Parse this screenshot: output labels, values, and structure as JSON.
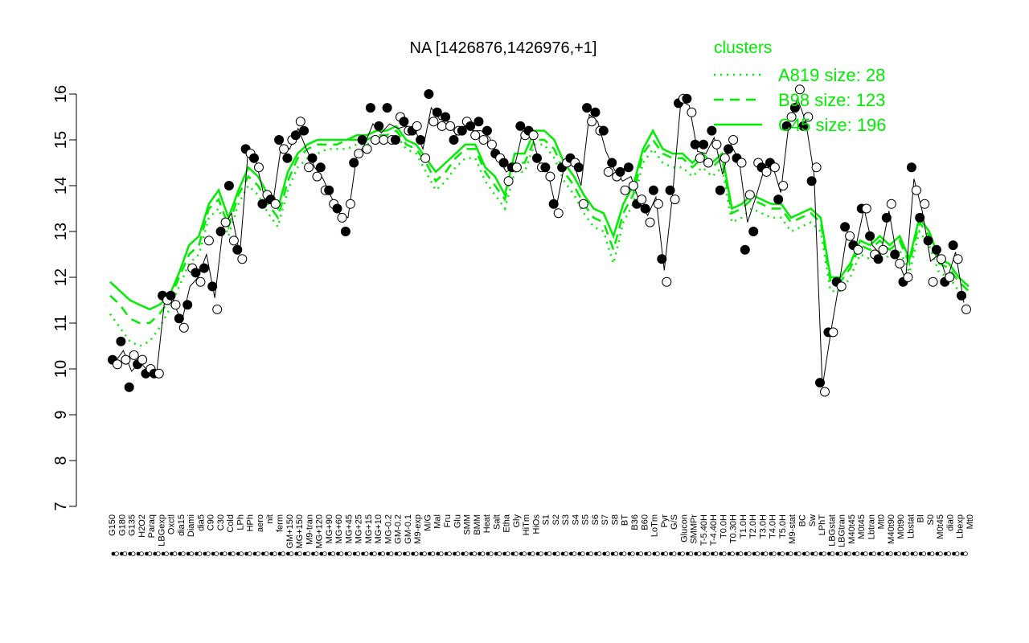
{
  "chart_data": {
    "type": "line",
    "title": "NA [1426876,1426976,+1]",
    "xlabel": "",
    "ylabel": "",
    "ylim": [
      7,
      16
    ],
    "yticks": [
      7,
      8,
      9,
      10,
      11,
      12,
      13,
      14,
      15,
      16
    ],
    "grid": false,
    "legend": {
      "title": "clusters",
      "placement": "top-right",
      "entries": [
        {
          "label": "A819 size: 28",
          "style": "dotted"
        },
        {
          "label": "B98 size: 123",
          "style": "dashed"
        },
        {
          "label": "C45 size: 196",
          "style": "solid"
        }
      ]
    },
    "colors": {
      "accent": "#00ee00",
      "points": "#000000"
    },
    "xtick_labels": [
      "G150",
      "G180",
      "G135",
      "H2O2",
      "Paraq",
      "LBGexp",
      "Oxctl",
      "dia15",
      "Diami",
      "dia5",
      "C90",
      "C30",
      "Cold",
      "LPh",
      "HPh",
      "aero",
      "nit",
      "ferm",
      "GM+150",
      "MG+150",
      "M9-tran",
      "MG+120",
      "MG+90",
      "MG+60",
      "MG+45",
      "MG+25",
      "MG+15",
      "MG+10",
      "MG-0.2",
      "GM-0.2",
      "GM-0.1",
      "M9-exp",
      "M/G",
      "Mal",
      "Fru",
      "Glu",
      "SMM",
      "BMM",
      "Heat",
      "Salt",
      "Etha",
      "Gly",
      "HiTm",
      "HiOs",
      "S1",
      "S2",
      "S3",
      "S4",
      "S5",
      "S6",
      "S7",
      "S8",
      "BT",
      "B36",
      "B60",
      "LoTm",
      "Pyr",
      "G/S",
      "Glucon",
      "SMMPr",
      "T-5.40H",
      "T-4.40H",
      "T0.0H",
      "T0.30H",
      "T1.0H",
      "T2.0H",
      "T3.0H",
      "T4.0H",
      "T5.0H",
      "M9-stat",
      "BC",
      "Sw",
      "LPhT",
      "LBGstat",
      "LBGtran",
      "M40t45",
      "M0t45",
      "Lbtran",
      "Mt0",
      "M40t90",
      "M0t90",
      "Lbstat",
      "BI",
      "S0",
      "M0t45",
      "dia0",
      "Lbexp",
      "Mt0"
    ],
    "series": [
      {
        "style": "solid",
        "values": [
          11.9,
          11.7,
          11.5,
          11.4,
          11.3,
          11.4,
          11.6,
          12.1,
          12.7,
          12.9,
          13.6,
          13.9,
          13.3,
          13.9,
          14.4,
          14.2,
          13.8,
          13.5,
          14.3,
          14.7,
          14.9,
          15.0,
          15.0,
          15.0,
          15.0,
          15.1,
          15.1,
          15.2,
          15.2,
          15.3,
          15.0,
          14.9,
          14.6,
          14.3,
          14.5,
          14.7,
          14.9,
          14.9,
          14.4,
          14.2,
          13.8,
          14.7,
          14.7,
          15.2,
          15.2,
          15.0,
          14.5,
          14.2,
          13.8,
          13.5,
          13.4,
          12.9,
          13.6,
          14.0,
          14.8,
          15.2,
          14.8,
          14.7,
          14.7,
          14.5,
          14.7,
          14.5,
          14.7,
          13.5,
          13.6,
          13.8,
          13.7,
          13.6,
          13.6,
          13.3,
          13.4,
          13.5,
          13.3,
          12.0,
          12.0,
          12.3,
          12.8,
          12.7,
          12.9,
          12.7,
          12.9,
          12.4,
          13.3,
          13.0,
          12.4,
          12.3,
          12.0,
          11.8
        ]
      },
      {
        "style": "dashed",
        "values": [
          11.6,
          11.4,
          11.1,
          11.0,
          11.0,
          11.2,
          11.5,
          12.0,
          12.5,
          12.7,
          13.5,
          13.7,
          13.1,
          13.8,
          14.2,
          14.0,
          13.6,
          13.3,
          14.1,
          14.6,
          14.8,
          14.9,
          14.9,
          14.9,
          15.0,
          15.0,
          15.0,
          15.1,
          15.1,
          15.2,
          14.9,
          14.8,
          14.5,
          14.1,
          14.3,
          14.6,
          14.8,
          14.8,
          14.3,
          14.0,
          13.7,
          14.5,
          14.5,
          15.0,
          15.0,
          14.8,
          14.3,
          14.0,
          13.6,
          13.3,
          13.2,
          12.6,
          13.4,
          13.8,
          14.7,
          15.0,
          14.7,
          14.6,
          14.6,
          14.4,
          14.6,
          14.4,
          14.6,
          13.4,
          13.5,
          13.7,
          13.6,
          13.5,
          13.5,
          13.2,
          13.3,
          13.4,
          13.2,
          11.9,
          11.9,
          12.2,
          12.7,
          12.6,
          12.8,
          12.6,
          12.8,
          12.3,
          13.2,
          12.9,
          12.3,
          12.2,
          11.9,
          11.7
        ]
      },
      {
        "style": "dotted",
        "values": [
          11.2,
          10.9,
          10.6,
          10.5,
          10.6,
          10.9,
          11.3,
          11.8,
          12.3,
          12.5,
          13.3,
          13.5,
          12.9,
          13.6,
          14.0,
          13.8,
          13.4,
          13.1,
          13.9,
          14.4,
          14.6,
          14.7,
          14.8,
          14.8,
          14.8,
          14.9,
          14.9,
          15.0,
          15.0,
          15.1,
          14.8,
          14.7,
          14.3,
          13.9,
          14.1,
          14.4,
          14.6,
          14.6,
          14.1,
          13.8,
          13.5,
          14.3,
          14.3,
          14.9,
          14.9,
          14.6,
          14.1,
          13.8,
          13.4,
          13.1,
          13.0,
          12.3,
          13.2,
          13.6,
          14.5,
          14.8,
          14.5,
          14.4,
          14.4,
          14.2,
          14.4,
          14.2,
          14.4,
          13.2,
          13.3,
          13.5,
          13.4,
          13.3,
          13.3,
          13.0,
          13.1,
          13.2,
          13.0,
          11.7,
          11.7,
          12.0,
          12.5,
          12.4,
          12.6,
          12.4,
          12.6,
          12.1,
          13.0,
          12.7,
          12.1,
          12.0,
          11.7,
          11.5
        ]
      }
    ],
    "points": [
      {
        "x": 0,
        "values": [
          10.2,
          10.1
        ]
      },
      {
        "x": 1,
        "values": [
          10.6,
          10.2
        ]
      },
      {
        "x": 2,
        "values": [
          9.6,
          10.3
        ]
      },
      {
        "x": 3,
        "values": [
          10.1,
          10.2
        ]
      },
      {
        "x": 4,
        "values": [
          9.9,
          10.0
        ]
      },
      {
        "x": 5,
        "values": [
          9.9,
          9.9
        ]
      },
      {
        "x": 6,
        "values": [
          11.6,
          11.5
        ]
      },
      {
        "x": 7,
        "values": [
          11.6,
          11.4
        ]
      },
      {
        "x": 8,
        "values": [
          11.1,
          10.9
        ]
      },
      {
        "x": 9,
        "values": [
          11.4,
          12.2
        ]
      },
      {
        "x": 10,
        "values": [
          12.1,
          11.9
        ]
      },
      {
        "x": 11,
        "values": [
          12.2,
          12.8
        ]
      },
      {
        "x": 12,
        "values": [
          11.8,
          11.3
        ]
      },
      {
        "x": 13,
        "values": [
          13.0,
          13.2
        ]
      },
      {
        "x": 14,
        "values": [
          14.0,
          12.8
        ]
      },
      {
        "x": 15,
        "values": [
          12.6,
          12.4
        ]
      },
      {
        "x": 16,
        "values": [
          14.8,
          14.7
        ]
      },
      {
        "x": 17,
        "values": [
          14.6,
          14.4
        ]
      },
      {
        "x": 18,
        "values": [
          13.6,
          13.8
        ]
      },
      {
        "x": 19,
        "values": [
          13.7,
          13.6
        ]
      },
      {
        "x": 20,
        "values": [
          15.0,
          14.8
        ]
      },
      {
        "x": 21,
        "values": [
          14.6,
          15.0
        ]
      },
      {
        "x": 22,
        "values": [
          15.1,
          15.4
        ]
      },
      {
        "x": 23,
        "values": [
          15.2,
          14.4
        ]
      },
      {
        "x": 24,
        "values": [
          14.6,
          14.2
        ]
      },
      {
        "x": 25,
        "values": [
          14.4,
          13.9
        ]
      },
      {
        "x": 26,
        "values": [
          13.9,
          13.6
        ]
      },
      {
        "x": 27,
        "values": [
          13.5,
          13.3
        ]
      },
      {
        "x": 28,
        "values": [
          13.0,
          13.6
        ]
      },
      {
        "x": 29,
        "values": [
          14.5,
          14.7
        ]
      },
      {
        "x": 30,
        "values": [
          15.0,
          14.8
        ]
      },
      {
        "x": 31,
        "values": [
          15.7,
          15.0
        ]
      },
      {
        "x": 32,
        "values": [
          15.3,
          15.0
        ]
      },
      {
        "x": 33,
        "values": [
          15.7,
          15.0
        ]
      },
      {
        "x": 34,
        "values": [
          15.0,
          15.5
        ]
      },
      {
        "x": 35,
        "values": [
          15.4,
          15.2
        ]
      },
      {
        "x": 36,
        "values": [
          15.2,
          15.3
        ]
      },
      {
        "x": 37,
        "values": [
          15.0,
          14.6
        ]
      },
      {
        "x": 38,
        "values": [
          16.0,
          15.4
        ]
      },
      {
        "x": 39,
        "values": [
          15.6,
          15.3
        ]
      },
      {
        "x": 40,
        "values": [
          15.5,
          15.3
        ]
      },
      {
        "x": 41,
        "values": [
          15.0,
          15.2
        ]
      },
      {
        "x": 42,
        "values": [
          15.2,
          15.4
        ]
      },
      {
        "x": 43,
        "values": [
          15.3,
          15.1
        ]
      },
      {
        "x": 44,
        "values": [
          15.4,
          15.0
        ]
      },
      {
        "x": 45,
        "values": [
          15.2,
          14.9
        ]
      },
      {
        "x": 46,
        "values": [
          14.7,
          14.6
        ]
      },
      {
        "x": 47,
        "values": [
          14.5,
          14.1
        ]
      },
      {
        "x": 48,
        "values": [
          14.4,
          14.4
        ]
      },
      {
        "x": 49,
        "values": [
          15.3,
          15.1
        ]
      },
      {
        "x": 50,
        "values": [
          15.2,
          15.1
        ]
      },
      {
        "x": 51,
        "values": [
          14.6,
          14.4
        ]
      },
      {
        "x": 52,
        "values": [
          14.4,
          14.2
        ]
      },
      {
        "x": 53,
        "values": [
          13.6,
          13.4
        ]
      },
      {
        "x": 54,
        "values": [
          14.4,
          14.5
        ]
      },
      {
        "x": 55,
        "values": [
          14.6,
          14.5
        ]
      },
      {
        "x": 56,
        "values": [
          14.4,
          13.6
        ]
      },
      {
        "x": 57,
        "values": [
          15.7,
          15.4
        ]
      },
      {
        "x": 58,
        "values": [
          15.6,
          15.2
        ]
      },
      {
        "x": 59,
        "values": [
          15.2,
          14.3
        ]
      },
      {
        "x": 60,
        "values": [
          14.5,
          14.2
        ]
      },
      {
        "x": 61,
        "values": [
          14.3,
          13.9
        ]
      },
      {
        "x": 62,
        "values": [
          14.4,
          14.0
        ]
      },
      {
        "x": 63,
        "values": [
          13.6,
          13.7
        ]
      },
      {
        "x": 64,
        "values": [
          13.5,
          13.2
        ]
      },
      {
        "x": 65,
        "values": [
          13.9,
          13.6
        ]
      },
      {
        "x": 66,
        "values": [
          12.4,
          11.9
        ]
      },
      {
        "x": 67,
        "values": [
          13.9,
          13.7
        ]
      },
      {
        "x": 68,
        "values": [
          15.8,
          15.9
        ]
      },
      {
        "x": 69,
        "values": [
          15.9,
          15.6
        ]
      },
      {
        "x": 70,
        "values": [
          14.9,
          14.6
        ]
      },
      {
        "x": 71,
        "values": [
          14.9,
          14.5
        ]
      },
      {
        "x": 72,
        "values": [
          15.2,
          14.9
        ]
      },
      {
        "x": 73,
        "values": [
          13.9,
          14.6
        ]
      },
      {
        "x": 74,
        "values": [
          14.8,
          15.0
        ]
      },
      {
        "x": 75,
        "values": [
          14.6,
          14.5
        ]
      },
      {
        "x": 76,
        "values": [
          12.6,
          13.8
        ]
      },
      {
        "x": 77,
        "values": [
          13.0,
          14.5
        ]
      },
      {
        "x": 78,
        "values": [
          14.4,
          14.3
        ]
      },
      {
        "x": 79,
        "values": [
          14.5,
          14.4
        ]
      },
      {
        "x": 80,
        "values": [
          13.7,
          14.0
        ]
      },
      {
        "x": 81,
        "values": [
          15.3,
          15.5
        ]
      },
      {
        "x": 82,
        "values": [
          15.7,
          16.1
        ]
      },
      {
        "x": 83,
        "values": [
          15.3,
          15.5
        ]
      },
      {
        "x": 84,
        "values": [
          14.1,
          14.4
        ]
      },
      {
        "x": 85,
        "values": [
          9.7,
          9.5
        ]
      },
      {
        "x": 86,
        "values": [
          10.8,
          10.8
        ]
      },
      {
        "x": 87,
        "values": [
          11.9,
          11.8
        ]
      },
      {
        "x": 88,
        "values": [
          13.1,
          12.9
        ]
      },
      {
        "x": 89,
        "values": [
          12.7,
          12.6
        ]
      },
      {
        "x": 90,
        "values": [
          13.5,
          13.5
        ]
      },
      {
        "x": 91,
        "values": [
          12.9,
          12.5
        ]
      },
      {
        "x": 92,
        "values": [
          12.4,
          12.6
        ]
      },
      {
        "x": 93,
        "values": [
          13.3,
          13.6
        ]
      },
      {
        "x": 94,
        "values": [
          12.5,
          12.3
        ]
      },
      {
        "x": 95,
        "values": [
          11.9,
          12.0
        ]
      },
      {
        "x": 96,
        "values": [
          14.4,
          13.9
        ]
      },
      {
        "x": 97,
        "values": [
          13.3,
          13.6
        ]
      },
      {
        "x": 98,
        "values": [
          12.8,
          11.9
        ]
      },
      {
        "x": 99,
        "values": [
          12.6,
          12.4
        ]
      },
      {
        "x": 100,
        "values": [
          11.9,
          12.0
        ]
      },
      {
        "x": 101,
        "values": [
          12.7,
          12.4
        ]
      },
      {
        "x": 102,
        "values": [
          11.6,
          11.3
        ]
      }
    ]
  }
}
